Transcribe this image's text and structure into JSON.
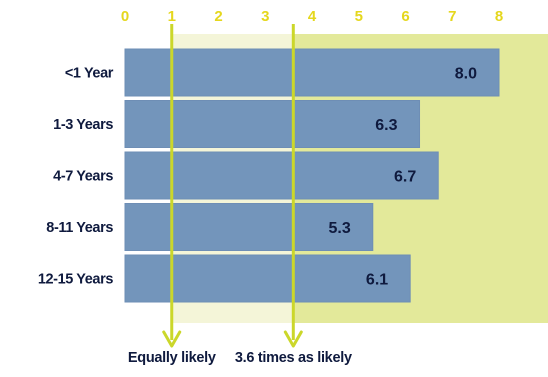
{
  "colors": {
    "bar": "#7395BB",
    "barStroke": "#6E8EB5",
    "highlight": "#E3E99A",
    "lightBand": "#F4F5D8",
    "marker": "#CBD72A",
    "axisText": "#E5D71D",
    "labelText": "#0F1A3E"
  },
  "chart_data": {
    "type": "bar",
    "orientation": "horizontal",
    "categories": [
      "<1 Year",
      "1-3 Years",
      "4-7 Years",
      "8-11 Years",
      "12-15 Years"
    ],
    "values": [
      8.0,
      6.3,
      6.7,
      5.3,
      6.1
    ],
    "value_labels": [
      "8.0",
      "6.3",
      "6.7",
      "5.3",
      "6.1"
    ],
    "xlim": [
      0,
      8
    ],
    "xticks": [
      "0",
      "1",
      "2",
      "3",
      "4",
      "5",
      "6",
      "7",
      "8"
    ],
    "grid": false,
    "reference_lines": [
      {
        "value": 1.0,
        "label": "Equally likely"
      },
      {
        "value": 3.6,
        "label": "3.6 times as likely"
      }
    ]
  }
}
